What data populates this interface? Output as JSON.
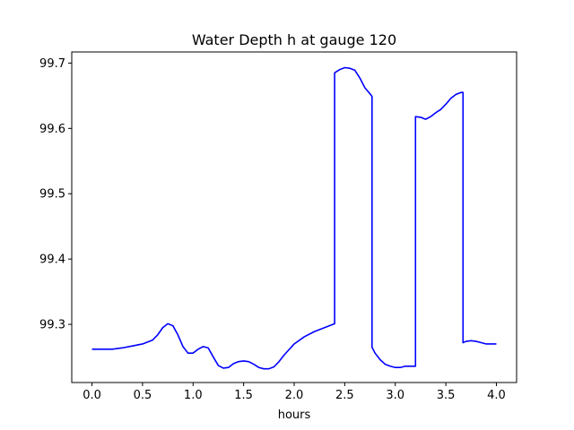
{
  "chart_data": {
    "type": "line",
    "title": "Water Depth h at gauge 120",
    "xlabel": "hours",
    "ylabel": "",
    "xlim": [
      -0.2,
      4.2
    ],
    "ylim": [
      99.211,
      99.717
    ],
    "xticks": [
      0.0,
      0.5,
      1.0,
      1.5,
      2.0,
      2.5,
      3.0,
      3.5,
      4.0
    ],
    "xtick_labels": [
      "0.0",
      "0.5",
      "1.0",
      "1.5",
      "2.0",
      "2.5",
      "3.0",
      "3.5",
      "4.0"
    ],
    "yticks": [
      99.3,
      99.4,
      99.5,
      99.6,
      99.7
    ],
    "ytick_labels": [
      "99.3",
      "99.4",
      "99.5",
      "99.6",
      "99.7"
    ],
    "grid": false,
    "legend": "none",
    "series": [
      {
        "color": "#0000ff",
        "x": [
          0.0,
          0.1,
          0.2,
          0.3,
          0.4,
          0.5,
          0.6,
          0.65,
          0.7,
          0.75,
          0.8,
          0.85,
          0.9,
          0.95,
          1.0,
          1.05,
          1.1,
          1.15,
          1.2,
          1.25,
          1.3,
          1.35,
          1.4,
          1.45,
          1.5,
          1.55,
          1.6,
          1.65,
          1.7,
          1.75,
          1.8,
          1.85,
          1.9,
          2.0,
          2.1,
          2.2,
          2.3,
          2.4,
          2.4,
          2.45,
          2.5,
          2.55,
          2.6,
          2.65,
          2.7,
          2.75,
          2.77,
          2.77,
          2.8,
          2.85,
          2.9,
          2.95,
          3.0,
          3.05,
          3.1,
          3.15,
          3.2,
          3.2,
          3.25,
          3.3,
          3.35,
          3.4,
          3.45,
          3.5,
          3.55,
          3.6,
          3.65,
          3.67,
          3.67,
          3.7,
          3.75,
          3.8,
          3.85,
          3.9,
          4.0
        ],
        "y": [
          99.262,
          99.262,
          99.262,
          99.264,
          99.267,
          99.27,
          99.276,
          99.284,
          99.295,
          99.301,
          99.298,
          99.284,
          99.266,
          99.256,
          99.256,
          99.262,
          99.266,
          99.264,
          99.25,
          99.237,
          99.233,
          99.234,
          99.24,
          99.243,
          99.244,
          99.243,
          99.239,
          99.234,
          99.232,
          99.232,
          99.235,
          99.243,
          99.253,
          99.27,
          99.281,
          99.289,
          99.295,
          99.301,
          99.685,
          99.69,
          99.693,
          99.692,
          99.689,
          99.677,
          99.662,
          99.653,
          99.649,
          99.265,
          99.256,
          99.246,
          99.239,
          99.236,
          99.234,
          99.234,
          99.236,
          99.236,
          99.236,
          99.618,
          99.617,
          99.614,
          99.618,
          99.624,
          99.629,
          99.637,
          99.646,
          99.652,
          99.655,
          99.655,
          99.272,
          99.274,
          99.275,
          99.274,
          99.272,
          99.27,
          99.27
        ]
      }
    ]
  }
}
